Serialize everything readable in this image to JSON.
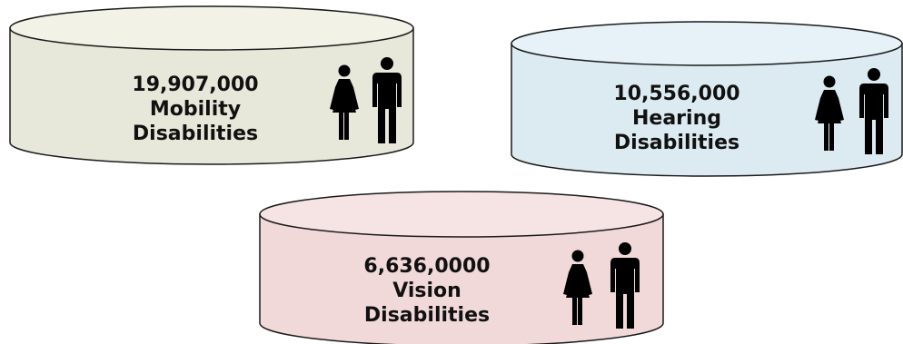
{
  "cylinders": [
    {
      "count": "19,907,000",
      "line1": "Mobility",
      "line2": "Disabilities",
      "fill": "#e8e8da",
      "top_fill": "#f2f2e6",
      "icon": "people-icon"
    },
    {
      "count": "10,556,000",
      "line1": "Hearing",
      "line2": "Disabilities",
      "fill": "#dcebf2",
      "top_fill": "#e6f2f7",
      "icon": "people-icon"
    },
    {
      "count": "6,636,0000",
      "line1": "Vision",
      "line2": "Disabilities",
      "fill": "#f2d9d9",
      "top_fill": "#f6e3e3",
      "icon": "people-icon"
    }
  ],
  "stroke_color": "#1a1a1a",
  "icon_color": "#000000"
}
